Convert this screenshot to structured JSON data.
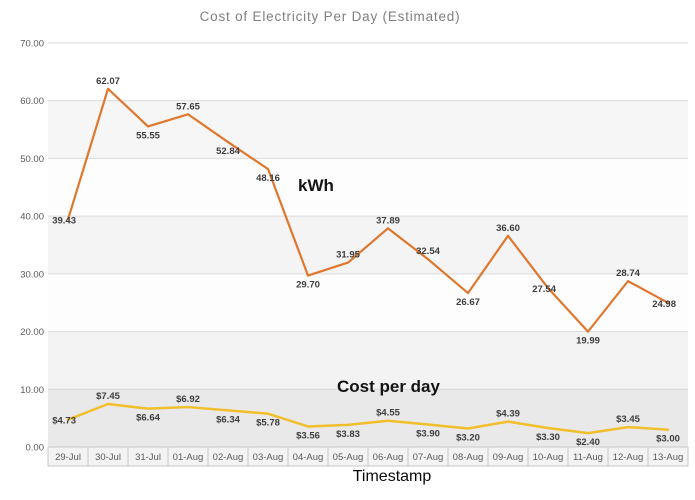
{
  "chart_data": {
    "type": "line",
    "title": "Cost of Electricity Per Day (Estimated)",
    "xlabel": "Timestamp",
    "ylabel": "",
    "ylim": [
      0,
      70
    ],
    "ytick_step": 10,
    "ytick_labels": [
      "70.00",
      "60.00",
      "50.00",
      "40.00",
      "30.00",
      "20.00",
      "10.00",
      "0.00"
    ],
    "grid": true,
    "legend_position": "none (inline bold text annotations instead)",
    "categories": [
      "29-Jul",
      "30-Jul",
      "31-Jul",
      "01-Aug",
      "02-Aug",
      "03-Aug",
      "04-Aug",
      "05-Aug",
      "06-Aug",
      "07-Aug",
      "08-Aug",
      "09-Aug",
      "10-Aug",
      "11-Aug",
      "12-Aug",
      "13-Aug"
    ],
    "series": [
      {
        "name": "kWh",
        "color": "#e0772e",
        "values": [
          39.43,
          62.07,
          55.55,
          57.65,
          52.84,
          48.16,
          29.7,
          31.95,
          37.89,
          32.54,
          26.67,
          36.6,
          27.54,
          19.99,
          28.74,
          24.98
        ],
        "labels": [
          "39.43",
          "62.07",
          "55.55",
          "57.65",
          "52.84",
          "48.16",
          "29.70",
          "31.95",
          "37.89",
          "32.54",
          "26.67",
          "36.60",
          "27.54",
          "19.99",
          "28.74",
          "24.98"
        ]
      },
      {
        "name": "Cost per day",
        "color": "#f0bf2b",
        "values": [
          4.73,
          7.45,
          6.64,
          6.92,
          6.34,
          5.78,
          3.56,
          3.83,
          4.55,
          3.9,
          3.2,
          4.39,
          3.3,
          2.4,
          3.45,
          3.0
        ],
        "labels": [
          "$4.73",
          "$7.45",
          "$6.64",
          "$6.92",
          "$6.34",
          "$5.78",
          "$3.56",
          "$3.83",
          "$4.55",
          "$3.90",
          "$3.20",
          "$4.39",
          "$3.30",
          "$2.40",
          "$3.45",
          "$3.00"
        ]
      }
    ]
  },
  "annotations": {
    "kwh_label": "kWh",
    "cost_label": "Cost per day"
  },
  "colors": {
    "title_text": "#7f7f7f",
    "gridline": "#d9d9d9",
    "axis_text": "#595959",
    "data_label_text": "#3d3d3d",
    "kwh_line": "#e0772e",
    "cost_line": "#f0bf2b",
    "axis_row_fill": "#f3f3f3",
    "axis_row_border": "#c9c9c9"
  }
}
